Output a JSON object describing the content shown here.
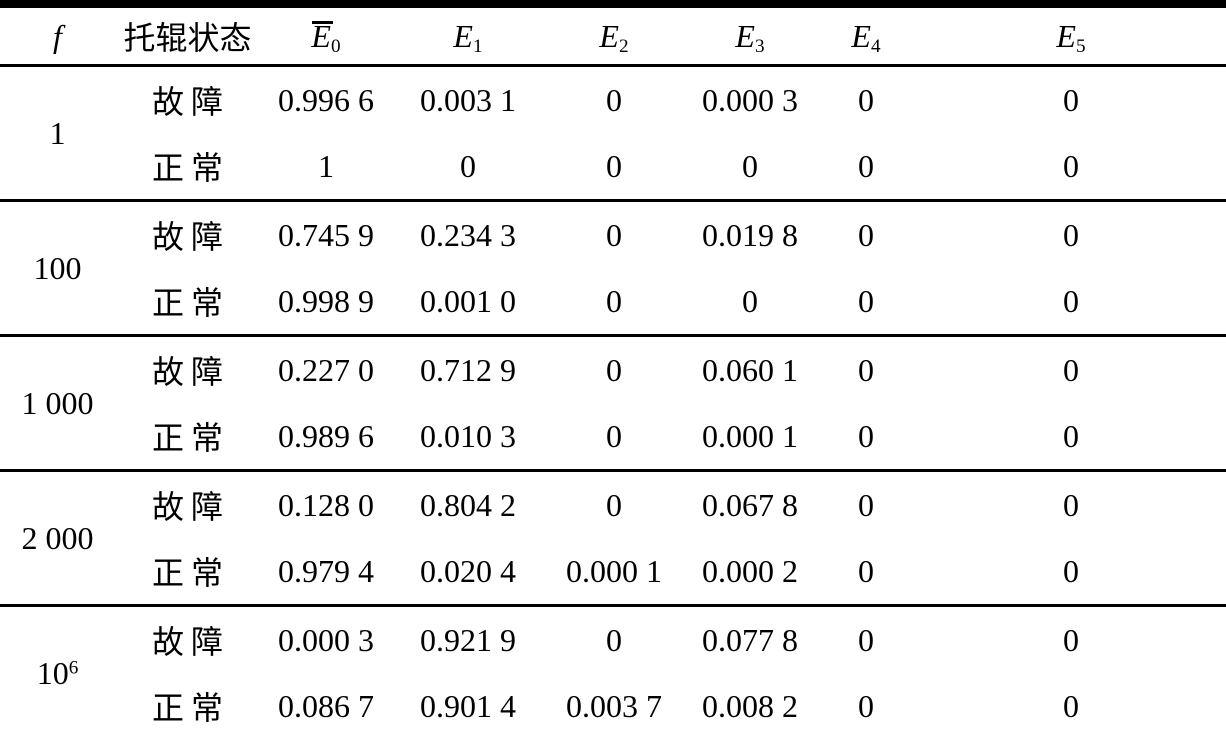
{
  "page": {
    "background": "#ffffff",
    "text_color": "#000000"
  },
  "table": {
    "columns": [
      {
        "key": "f",
        "label": "f",
        "italic": true
      },
      {
        "key": "state",
        "label": "托辊状态",
        "italic": false
      },
      {
        "key": "E0",
        "base": "E",
        "sub": "0",
        "overbar": true
      },
      {
        "key": "E1",
        "base": "E",
        "sub": "1",
        "overbar": false
      },
      {
        "key": "E2",
        "base": "E",
        "sub": "2",
        "overbar": false
      },
      {
        "key": "E3",
        "base": "E",
        "sub": "3",
        "overbar": false
      },
      {
        "key": "E4",
        "base": "E",
        "sub": "4",
        "overbar": false
      },
      {
        "key": "E5",
        "base": "E",
        "sub": "5",
        "overbar": false
      }
    ],
    "groups": [
      {
        "f": {
          "base": "1",
          "sup": ""
        },
        "rows": [
          {
            "state": "故障",
            "values": [
              "0.996 6",
              "0.003 1",
              "0",
              "0.000 3",
              "0",
              "0"
            ]
          },
          {
            "state": "正常",
            "values": [
              "1",
              "0",
              "0",
              "0",
              "0",
              "0"
            ]
          }
        ]
      },
      {
        "f": {
          "base": "100",
          "sup": ""
        },
        "rows": [
          {
            "state": "故障",
            "values": [
              "0.745 9",
              "0.234 3",
              "0",
              "0.019 8",
              "0",
              "0"
            ]
          },
          {
            "state": "正常",
            "values": [
              "0.998 9",
              "0.001 0",
              "0",
              "0",
              "0",
              "0"
            ]
          }
        ]
      },
      {
        "f": {
          "base": "1 000",
          "sup": ""
        },
        "rows": [
          {
            "state": "故障",
            "values": [
              "0.227 0",
              "0.712 9",
              "0",
              "0.060 1",
              "0",
              "0"
            ]
          },
          {
            "state": "正常",
            "values": [
              "0.989 6",
              "0.010 3",
              "0",
              "0.000 1",
              "0",
              "0"
            ]
          }
        ]
      },
      {
        "f": {
          "base": "2 000",
          "sup": ""
        },
        "rows": [
          {
            "state": "故障",
            "values": [
              "0.128 0",
              "0.804 2",
              "0",
              "0.067 8",
              "0",
              "0"
            ]
          },
          {
            "state": "正常",
            "values": [
              "0.979 4",
              "0.020 4",
              "0.000 1",
              "0.000 2",
              "0",
              "0"
            ]
          }
        ]
      },
      {
        "f": {
          "base": "10",
          "sup": "6"
        },
        "rows": [
          {
            "state": "故障",
            "values": [
              "0.000 3",
              "0.921 9",
              "0",
              "0.077 8",
              "0",
              "0"
            ]
          },
          {
            "state": "正常",
            "values": [
              "0.086 7",
              "0.901 4",
              "0.003 7",
              "0.008 2",
              "0",
              "0"
            ]
          }
        ]
      }
    ]
  }
}
